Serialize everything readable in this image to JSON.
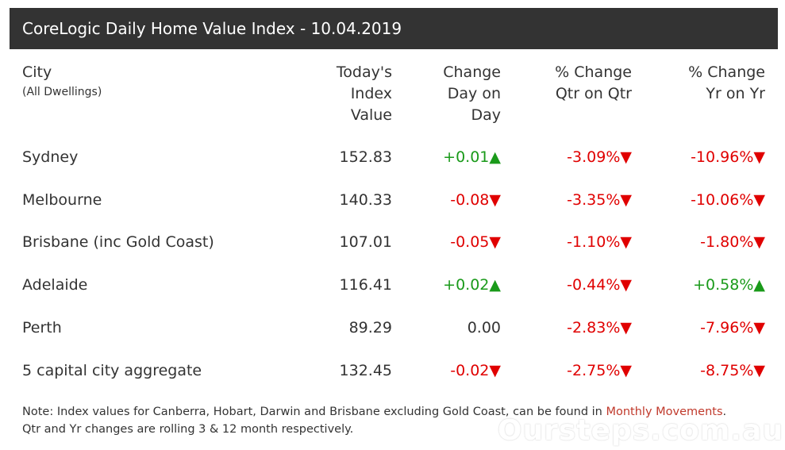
{
  "header": {
    "title": "CoreLogic Daily Home Value Index - 10.04.2019"
  },
  "columns": {
    "city": "City",
    "city_sub": "(All Dwellings)",
    "index": [
      "Today's",
      "Index",
      "Value"
    ],
    "day": [
      "Change",
      "Day on",
      "Day"
    ],
    "qtr": [
      "% Change",
      "Qtr on Qtr"
    ],
    "yr": [
      "% Change",
      "Yr on Yr"
    ]
  },
  "rows": [
    {
      "city": "Sydney",
      "index": "152.83",
      "day": "+0.01▲",
      "day_dir": "up",
      "qtr": "-3.09%▼",
      "qtr_dir": "down",
      "yr": "-10.96%▼",
      "yr_dir": "down"
    },
    {
      "city": "Melbourne",
      "index": "140.33",
      "day": "-0.08▼",
      "day_dir": "down",
      "qtr": "-3.35%▼",
      "qtr_dir": "down",
      "yr": "-10.06%▼",
      "yr_dir": "down"
    },
    {
      "city": "Brisbane (inc Gold Coast)",
      "index": "107.01",
      "day": "-0.05▼",
      "day_dir": "down",
      "qtr": "-1.10%▼",
      "qtr_dir": "down",
      "yr": "-1.80%▼",
      "yr_dir": "down"
    },
    {
      "city": "Adelaide",
      "index": "116.41",
      "day": "+0.02▲",
      "day_dir": "up",
      "qtr": "-0.44%▼",
      "qtr_dir": "down",
      "yr": "+0.58%▲",
      "yr_dir": "up"
    },
    {
      "city": "Perth",
      "index": "89.29",
      "day": "0.00",
      "day_dir": "flat",
      "qtr": "-2.83%▼",
      "qtr_dir": "down",
      "yr": "-7.96%▼",
      "yr_dir": "down"
    },
    {
      "city": "5 capital city aggregate",
      "index": "132.45",
      "day": "-0.02▼",
      "day_dir": "down",
      "qtr": "-2.75%▼",
      "qtr_dir": "down",
      "yr": "-8.75%▼",
      "yr_dir": "down"
    }
  ],
  "note": {
    "line1_prefix": "Note: Index values for Canberra, Hobart, Darwin and Brisbane excluding Gold Coast, can be found in ",
    "link": "Monthly Movements",
    "line1_suffix": ".",
    "line2": "Qtr and Yr changes are rolling 3 & 12 month respectively."
  },
  "watermark": "Oursteps.com.au",
  "colors": {
    "header_bg": "#333333",
    "up": "#1a9a1a",
    "down": "#e00000",
    "link": "#c0392b"
  }
}
